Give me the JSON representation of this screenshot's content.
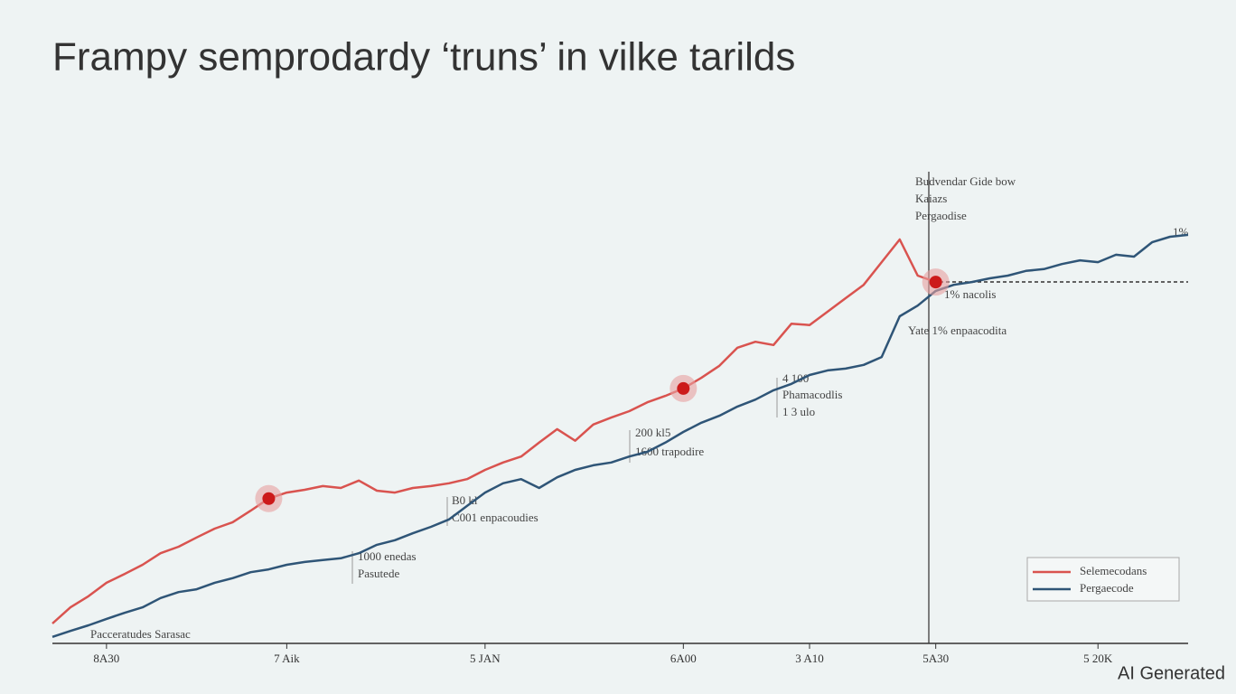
{
  "chart_data": {
    "type": "line",
    "title": "Frampy semprodardy ‘truns’ in vilke tarilds",
    "categories": [
      null,
      null,
      null,
      "8A30",
      null,
      null,
      null,
      null,
      null,
      null,
      null,
      null,
      null,
      "7 Aik",
      null,
      null,
      null,
      null,
      null,
      null,
      null,
      null,
      null,
      null,
      "5 JAN",
      null,
      null,
      null,
      null,
      null,
      null,
      null,
      null,
      null,
      null,
      "6A00",
      null,
      null,
      null,
      null,
      null,
      null,
      "3 A10",
      null,
      null,
      null,
      null,
      null,
      null,
      "5A30",
      null,
      null,
      null,
      null,
      null,
      null,
      null,
      null,
      "5 20K",
      null,
      null,
      null,
      null,
      null
    ],
    "ylim": [
      0,
      100
    ],
    "series": [
      {
        "name": "Selemecodans",
        "color": "#d9534f",
        "values": [
          4.3,
          7.8,
          10.2,
          13.1,
          15.0,
          17.0,
          19.5,
          20.9,
          22.9,
          24.8,
          26.2,
          28.7,
          31.3,
          32.6,
          33.2,
          34.0,
          33.6,
          35.2,
          33.0,
          32.6,
          33.6,
          34.0,
          34.6,
          35.5,
          37.5,
          39.1,
          40.4,
          43.4,
          46.3,
          43.8,
          47.3,
          48.8,
          50.2,
          52.1,
          53.5,
          55.1,
          57.4,
          60.0,
          63.9,
          65.2,
          64.5,
          69.1,
          68.8,
          71.7,
          74.6,
          77.5,
          82.4,
          87.3,
          79.5,
          78.1,
          null,
          null,
          null,
          null,
          null,
          null,
          null,
          null,
          null,
          null,
          null,
          null,
          null,
          null
        ]
      },
      {
        "name": "Pergaecode",
        "color": "#2f5577",
        "values": [
          1.4,
          2.7,
          3.9,
          5.3,
          6.6,
          7.8,
          9.8,
          11.1,
          11.7,
          13.1,
          14.1,
          15.4,
          16.0,
          17.0,
          17.6,
          18.0,
          18.4,
          19.5,
          21.3,
          22.3,
          23.8,
          25.2,
          26.8,
          29.7,
          32.6,
          34.6,
          35.5,
          33.6,
          35.9,
          37.5,
          38.5,
          39.1,
          40.4,
          41.4,
          43.4,
          45.7,
          47.7,
          49.2,
          51.2,
          52.7,
          54.7,
          56.1,
          58.0,
          59.0,
          59.4,
          60.2,
          61.9,
          70.7,
          73.0,
          76.2,
          77.5,
          78.1,
          78.9,
          79.5,
          80.5,
          80.9,
          82.0,
          82.8,
          82.4,
          84.0,
          83.6,
          86.7,
          87.9,
          88.3
        ]
      }
    ],
    "annotations": [
      "Budvendar Gide bow",
      "Kaiazs",
      "Pergaodise",
      "Yate 1% enpaacodita",
      "1% nacolis",
      "4 100",
      "Phamacodlis",
      "1 3 ulo",
      "200 kl5",
      "1600 trapodire",
      "B0 kl",
      "C001 enpacoudies",
      "1000 enedas",
      "Pasutede",
      "1%",
      "Pacceratudes Sarasac",
      "AI Generated"
    ],
    "legend": "bottom-right"
  }
}
